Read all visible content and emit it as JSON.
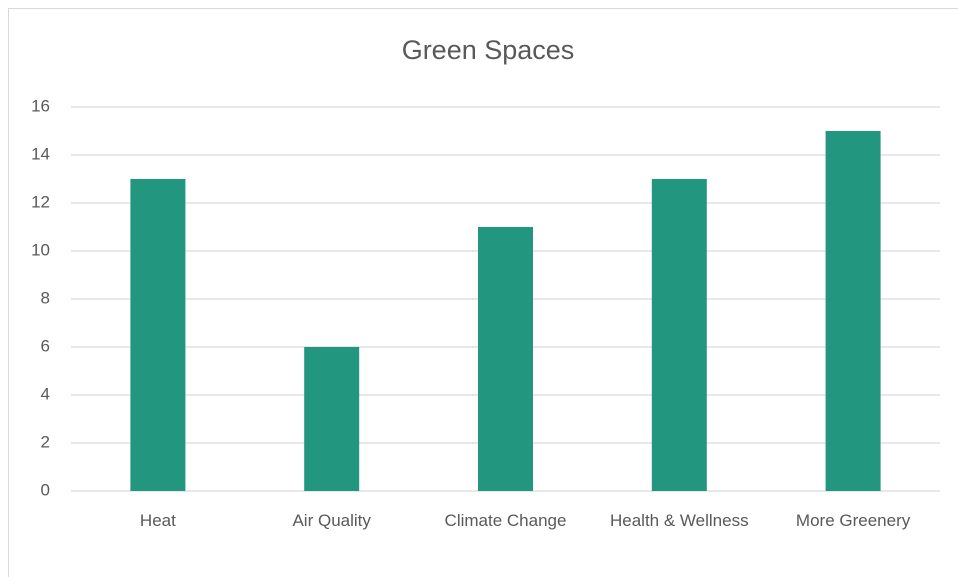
{
  "chart_data": {
    "type": "bar",
    "title": "Green Spaces",
    "categories": [
      "Heat",
      "Air Quality",
      "Climate Change",
      "Health & Wellness",
      "More Greenery"
    ],
    "values": [
      13,
      6,
      11,
      13,
      15
    ],
    "color": "#239680",
    "ylim": [
      0,
      16
    ],
    "yticks": [
      0,
      2,
      4,
      6,
      8,
      10,
      12,
      14,
      16
    ],
    "grid": true
  }
}
